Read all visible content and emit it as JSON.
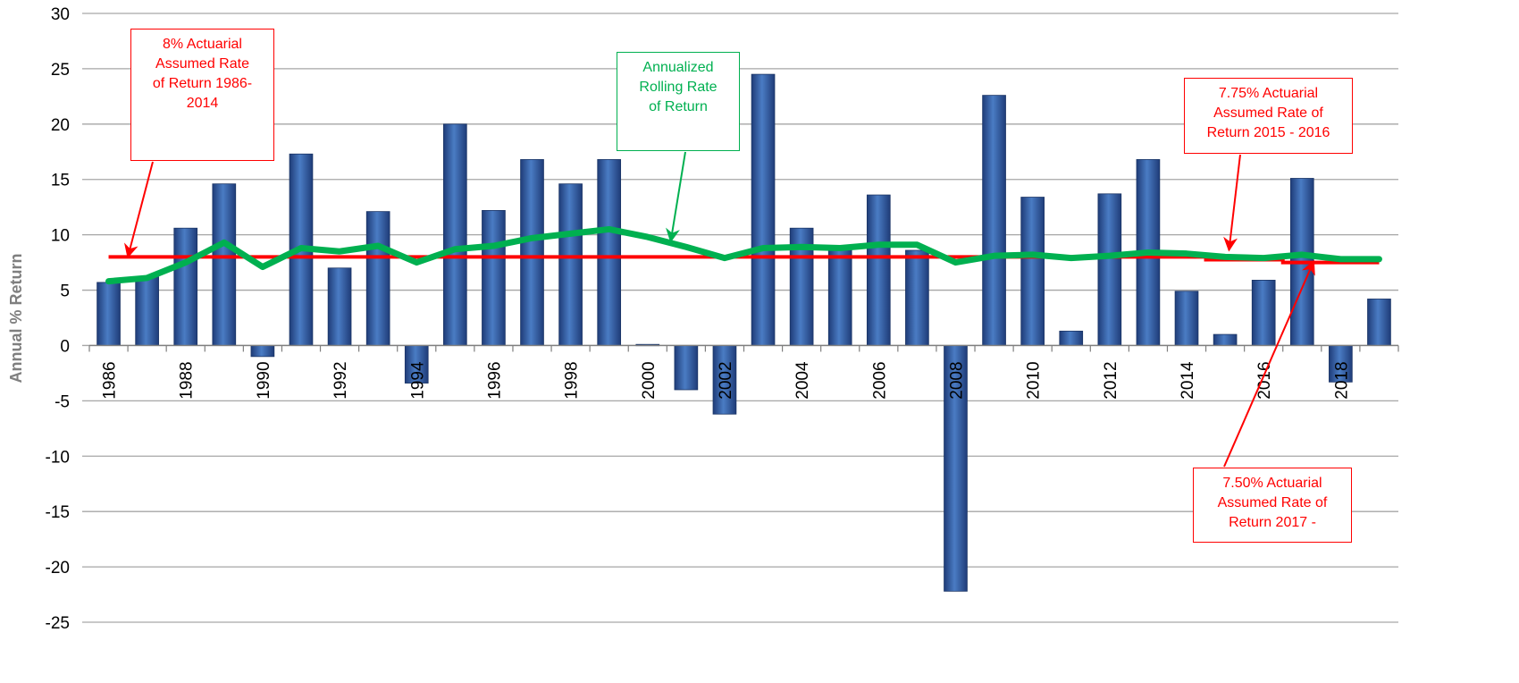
{
  "colors": {
    "bar": "#2f5597",
    "rolling_line": "#00b050",
    "assumed_line": "#ff0000",
    "grid": "#a6a6a6"
  },
  "chart_data": {
    "type": "bar",
    "title": "",
    "xlabel": "",
    "ylabel": "Annual % Return",
    "ylim": [
      -25,
      30
    ],
    "yticks": [
      30,
      25,
      20,
      15,
      10,
      5,
      0,
      -5,
      -10,
      -15,
      -20,
      -25
    ],
    "grid": true,
    "x": [
      1986,
      1987,
      1988,
      1989,
      1990,
      1991,
      1992,
      1993,
      1994,
      1995,
      1996,
      1997,
      1998,
      1999,
      2000,
      2001,
      2002,
      2003,
      2004,
      2005,
      2006,
      2007,
      2008,
      2009,
      2010,
      2011,
      2012,
      2013,
      2014,
      2015,
      2016,
      2017,
      2018,
      2019
    ],
    "x_tick_labels": [
      "1986",
      "1988",
      "1990",
      "1992",
      "1994",
      "1996",
      "1998",
      "2000",
      "2002",
      "2004",
      "2006",
      "2008",
      "2010",
      "2012",
      "2014",
      "2016",
      "2018"
    ],
    "series": [
      {
        "kind": "bar",
        "values": [
          5.7,
          6.2,
          10.6,
          14.6,
          -1.0,
          17.3,
          7.0,
          12.1,
          -3.4,
          20.0,
          12.2,
          16.8,
          14.6,
          16.8,
          0.1,
          -4.0,
          -6.2,
          24.5,
          10.6,
          8.7,
          13.6,
          8.6,
          -22.2,
          22.6,
          13.4,
          1.3,
          13.7,
          16.8,
          4.9,
          1.0,
          5.9,
          15.1,
          -3.3,
          4.2
        ]
      },
      {
        "kind": "line",
        "values": [
          5.8,
          6.1,
          7.5,
          9.3,
          7.1,
          8.8,
          8.5,
          9.0,
          7.5,
          8.7,
          9.0,
          9.7,
          10.1,
          10.5,
          9.8,
          8.9,
          7.9,
          8.8,
          8.9,
          8.8,
          9.1,
          9.1,
          7.5,
          8.1,
          8.2,
          7.9,
          8.1,
          8.4,
          8.3,
          8.0,
          7.9,
          8.2,
          7.8,
          7.8
        ]
      },
      {
        "kind": "step",
        "segments": [
          {
            "from": 1986,
            "to": 2014,
            "value": 8.0
          },
          {
            "from": 2015,
            "to": 2016,
            "value": 7.75
          },
          {
            "from": 2017,
            "to": 2019,
            "value": 7.5
          }
        ]
      }
    ],
    "annotations": [
      {
        "id": "note-8pct",
        "text": "8% Actuarial\nAssumed Rate\nof Return 1986-\n2014",
        "color": "red",
        "arrow_to": {
          "x": 1986.5,
          "y": 8.0
        }
      },
      {
        "id": "note-rolling",
        "text": "Annualized\nRolling Rate\nof Return",
        "color": "green",
        "arrow_to": {
          "x": 2000.6,
          "y": 9.4
        }
      },
      {
        "id": "note-775pct",
        "text": "7.75% Actuarial\nAssumed Rate of\nReturn 2015 - 2016",
        "color": "red",
        "arrow_to": {
          "x": 2015.1,
          "y": 8.6
        }
      },
      {
        "id": "note-750pct",
        "text": "7.50% Actuarial\nAssumed Rate of\nReturn 2017 -",
        "color": "red",
        "arrow_to": {
          "x": 2017.3,
          "y": 7.6
        }
      }
    ]
  }
}
